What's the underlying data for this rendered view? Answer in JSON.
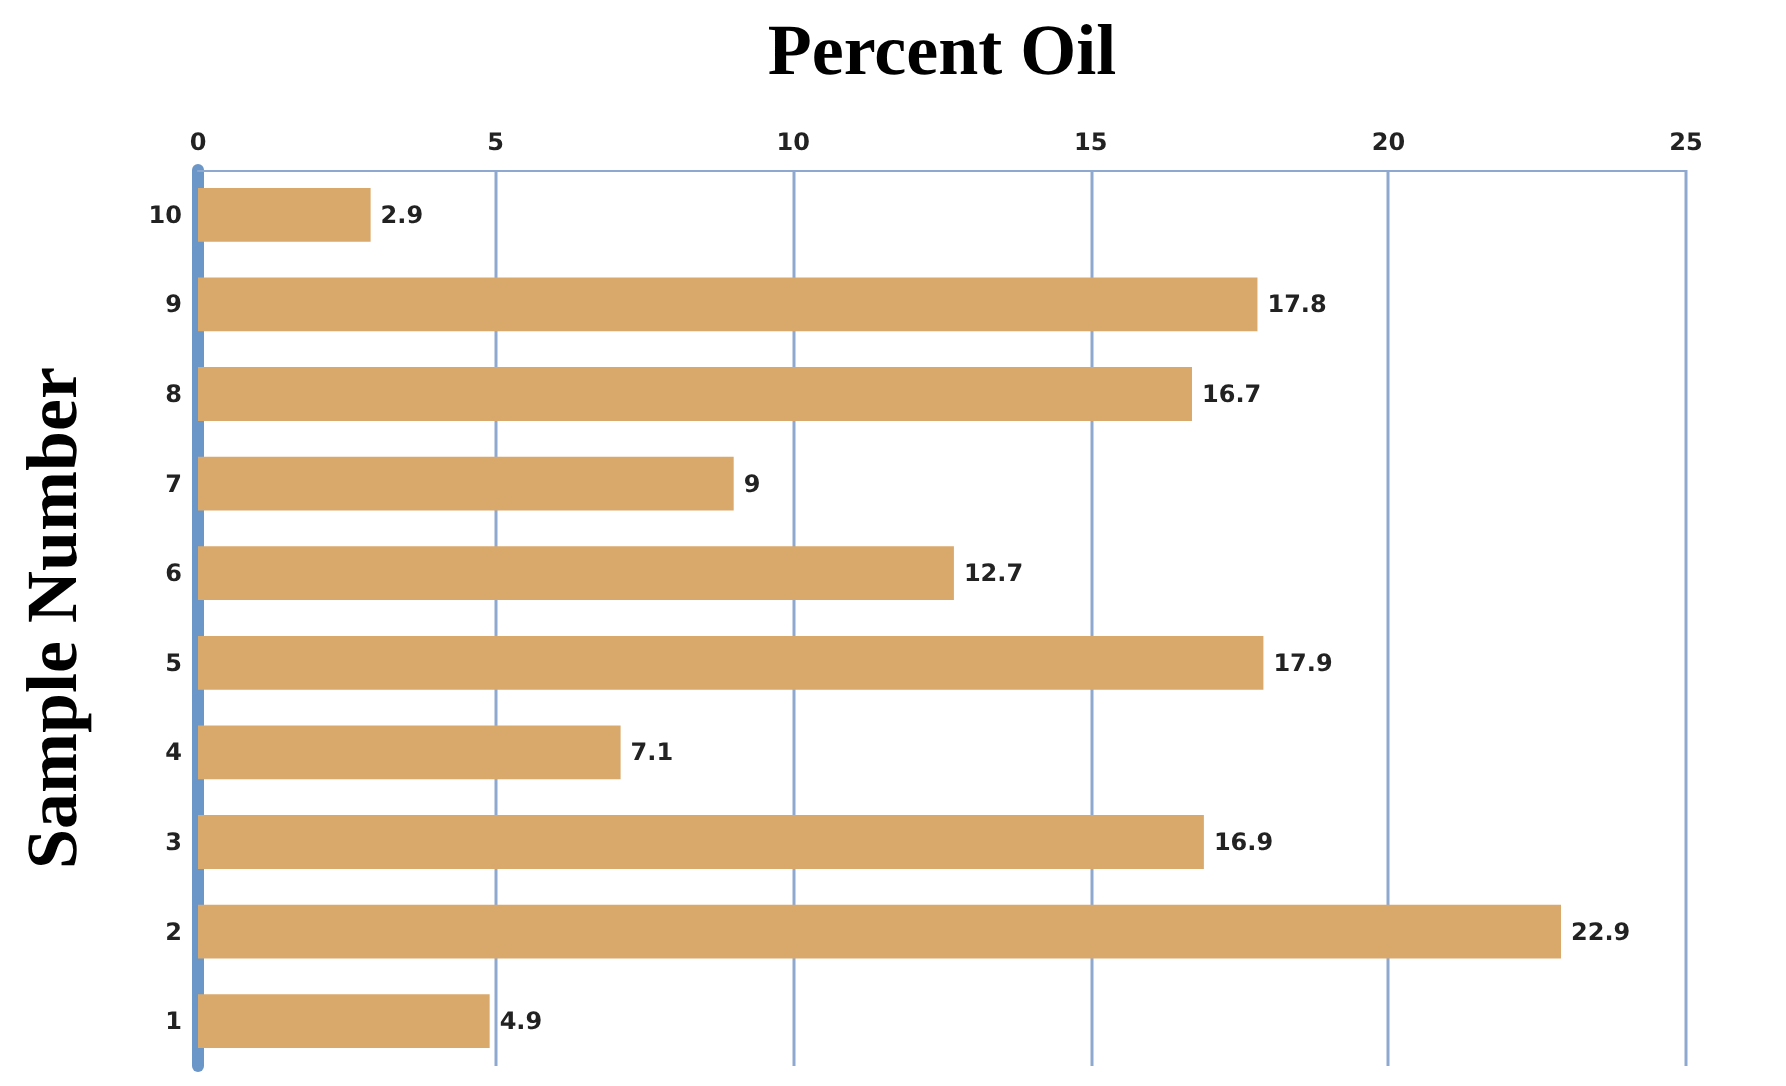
{
  "chart_data": {
    "type": "bar",
    "orientation": "horizontal",
    "xlabel": "Percent Oil",
    "ylabel": "Sample Number",
    "categories": [
      "10",
      "9",
      "8",
      "7",
      "6",
      "5",
      "4",
      "3",
      "2",
      "1"
    ],
    "values": [
      2.9,
      17.8,
      16.7,
      9,
      12.7,
      17.9,
      7.1,
      16.9,
      22.9,
      4.9
    ],
    "color": "#d9a96b",
    "xlim": [
      0,
      25
    ],
    "xticks": [
      0,
      5,
      10,
      15,
      20,
      25
    ],
    "grid": "x",
    "data_labels": true
  }
}
